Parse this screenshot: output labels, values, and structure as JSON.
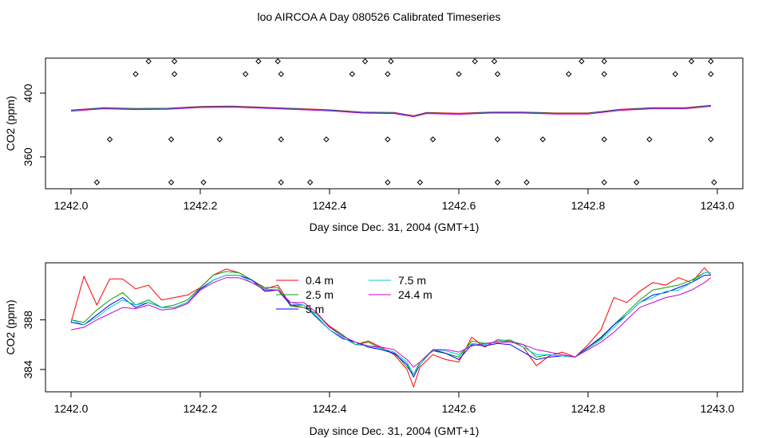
{
  "figure": {
    "title": "loo AIRCOA A  Day 080526  Calibrated Timeseries"
  },
  "chart_data": [
    {
      "type": "scatter+line",
      "xlabel": "Day since Dec. 31, 2004 (GMT+1)",
      "ylabel": "CO2 (ppm)",
      "xlim": [
        1242.0,
        1243.0
      ],
      "ylim": [
        340,
        422
      ],
      "xticks": [
        "1242.0",
        "1242.2",
        "1242.4",
        "1242.6",
        "1242.8",
        "1243.0"
      ],
      "yticks": [
        "360",
        "400"
      ],
      "colors": {
        "0.4 m": "#ff0000",
        "2.5 m": "#00a000",
        "5 m": "#0000ff",
        "7.5 m": "#00cccc",
        "24.4 m": "#cc00cc"
      },
      "line_x": [
        1242.0,
        1242.05,
        1242.1,
        1242.15,
        1242.2,
        1242.25,
        1242.3,
        1242.35,
        1242.4,
        1242.45,
        1242.5,
        1242.53,
        1242.55,
        1242.6,
        1242.65,
        1242.7,
        1242.75,
        1242.8,
        1242.85,
        1242.9,
        1242.95,
        1242.99
      ],
      "line_y": [
        389,
        390.5,
        390,
        390.2,
        391.3,
        391.5,
        390.8,
        390,
        389.2,
        387.8,
        387.5,
        385.5,
        387.5,
        387,
        387.8,
        387.8,
        387.2,
        387.2,
        389.5,
        390.5,
        390.5,
        392
      ],
      "points": [
        {
          "x": 1242.04,
          "y": 344
        },
        {
          "x": 1242.155,
          "y": 344
        },
        {
          "x": 1242.205,
          "y": 344
        },
        {
          "x": 1242.325,
          "y": 344
        },
        {
          "x": 1242.37,
          "y": 344
        },
        {
          "x": 1242.49,
          "y": 344
        },
        {
          "x": 1242.54,
          "y": 344
        },
        {
          "x": 1242.66,
          "y": 344
        },
        {
          "x": 1242.705,
          "y": 344
        },
        {
          "x": 1242.825,
          "y": 344
        },
        {
          "x": 1242.875,
          "y": 344
        },
        {
          "x": 1242.995,
          "y": 344
        },
        {
          "x": 1242.06,
          "y": 371
        },
        {
          "x": 1242.155,
          "y": 371
        },
        {
          "x": 1242.23,
          "y": 371
        },
        {
          "x": 1242.325,
          "y": 371
        },
        {
          "x": 1242.395,
          "y": 371
        },
        {
          "x": 1242.49,
          "y": 371
        },
        {
          "x": 1242.56,
          "y": 371
        },
        {
          "x": 1242.66,
          "y": 371
        },
        {
          "x": 1242.73,
          "y": 371
        },
        {
          "x": 1242.825,
          "y": 371
        },
        {
          "x": 1242.895,
          "y": 371
        },
        {
          "x": 1242.99,
          "y": 371
        },
        {
          "x": 1242.1,
          "y": 412
        },
        {
          "x": 1242.16,
          "y": 412
        },
        {
          "x": 1242.27,
          "y": 412
        },
        {
          "x": 1242.325,
          "y": 412
        },
        {
          "x": 1242.435,
          "y": 412
        },
        {
          "x": 1242.49,
          "y": 412
        },
        {
          "x": 1242.6,
          "y": 412
        },
        {
          "x": 1242.66,
          "y": 412
        },
        {
          "x": 1242.77,
          "y": 412
        },
        {
          "x": 1242.825,
          "y": 412
        },
        {
          "x": 1242.935,
          "y": 412
        },
        {
          "x": 1242.99,
          "y": 412
        },
        {
          "x": 1242.12,
          "y": 420
        },
        {
          "x": 1242.16,
          "y": 420
        },
        {
          "x": 1242.29,
          "y": 420
        },
        {
          "x": 1242.32,
          "y": 420
        },
        {
          "x": 1242.455,
          "y": 420
        },
        {
          "x": 1242.495,
          "y": 420
        },
        {
          "x": 1242.625,
          "y": 420
        },
        {
          "x": 1242.655,
          "y": 420
        },
        {
          "x": 1242.79,
          "y": 420
        },
        {
          "x": 1242.825,
          "y": 420
        },
        {
          "x": 1242.96,
          "y": 420
        },
        {
          "x": 1242.99,
          "y": 420
        }
      ]
    },
    {
      "type": "line",
      "xlabel": "Day since Dec. 31, 2004 (GMT+1)",
      "ylabel": "CO2 (ppm)",
      "xlim": [
        1242.0,
        1243.0
      ],
      "ylim": [
        382.2,
        392.6
      ],
      "xticks": [
        "1242.0",
        "1242.2",
        "1242.4",
        "1242.6",
        "1242.8",
        "1243.0"
      ],
      "yticks": [
        "384",
        "388"
      ],
      "x": [
        1242.0,
        1242.02,
        1242.04,
        1242.06,
        1242.08,
        1242.1,
        1242.12,
        1242.14,
        1242.16,
        1242.18,
        1242.2,
        1242.22,
        1242.24,
        1242.26,
        1242.28,
        1242.3,
        1242.32,
        1242.34,
        1242.36,
        1242.38,
        1242.4,
        1242.42,
        1242.44,
        1242.46,
        1242.48,
        1242.5,
        1242.52,
        1242.53,
        1242.54,
        1242.56,
        1242.58,
        1242.6,
        1242.62,
        1242.64,
        1242.66,
        1242.68,
        1242.7,
        1242.72,
        1242.74,
        1242.76,
        1242.78,
        1242.8,
        1242.82,
        1242.84,
        1242.86,
        1242.88,
        1242.9,
        1242.92,
        1242.94,
        1242.96,
        1242.98,
        1242.99
      ],
      "series": [
        {
          "name": "0.4 m",
          "color": "#ff0000",
          "values": [
            387.8,
            391.5,
            389.2,
            391.3,
            391.3,
            390.5,
            390.8,
            389.6,
            389.8,
            390.0,
            390.6,
            391.6,
            392.1,
            391.8,
            391.2,
            390.5,
            390.8,
            389.2,
            389.0,
            388.5,
            387.5,
            386.8,
            386.0,
            386.3,
            385.8,
            385.2,
            384.0,
            382.6,
            384.2,
            385.2,
            384.8,
            384.6,
            386.6,
            385.8,
            386.4,
            386.3,
            385.8,
            384.3,
            385.1,
            385.4,
            385.0,
            386.0,
            387.2,
            389.8,
            389.4,
            390.3,
            391.0,
            390.8,
            391.4,
            391.0,
            392.2,
            391.6
          ]
        },
        {
          "name": "2.5 m",
          "color": "#00a000",
          "values": [
            388.0,
            387.8,
            388.8,
            389.6,
            390.2,
            389.2,
            389.6,
            389.0,
            389.2,
            389.6,
            390.6,
            391.6,
            391.9,
            391.8,
            391.2,
            390.6,
            390.6,
            389.1,
            389.0,
            388.5,
            387.4,
            386.8,
            386.0,
            386.2,
            385.7,
            385.4,
            384.2,
            383.6,
            384.6,
            385.5,
            385.3,
            385.0,
            386.3,
            386.1,
            386.2,
            386.3,
            386.0,
            385.0,
            385.2,
            385.1,
            385.0,
            385.8,
            386.5,
            387.6,
            388.6,
            389.6,
            390.4,
            390.6,
            390.8,
            391.2,
            391.8,
            391.8
          ]
        },
        {
          "name": "5 m",
          "color": "#0000ff",
          "values": [
            387.8,
            387.6,
            388.4,
            389.2,
            389.8,
            389.0,
            389.4,
            389.0,
            389.0,
            389.4,
            390.5,
            391.2,
            391.6,
            391.6,
            391.2,
            390.3,
            390.4,
            389.2,
            389.2,
            388.2,
            387.2,
            386.5,
            386.2,
            385.8,
            385.6,
            385.3,
            384.4,
            383.4,
            384.4,
            385.6,
            385.3,
            384.8,
            386.0,
            385.9,
            386.1,
            386.0,
            385.4,
            384.8,
            385.0,
            385.1,
            385.0,
            385.8,
            386.6,
            387.6,
            388.4,
            389.4,
            390.0,
            390.2,
            390.6,
            391.0,
            391.6,
            391.6
          ]
        },
        {
          "name": "7.5 m",
          "color": "#00cccc",
          "values": [
            388.0,
            387.6,
            388.2,
            389.0,
            389.6,
            389.2,
            389.4,
            389.0,
            389.0,
            389.4,
            390.4,
            391.2,
            391.6,
            391.6,
            391.0,
            390.5,
            390.4,
            389.4,
            389.2,
            388.3,
            387.2,
            386.6,
            386.0,
            385.9,
            385.7,
            385.4,
            384.6,
            383.6,
            384.4,
            385.6,
            385.5,
            385.2,
            386.1,
            386.0,
            386.3,
            386.4,
            385.8,
            385.2,
            385.2,
            385.1,
            385.0,
            385.7,
            386.4,
            387.4,
            388.4,
            389.4,
            389.8,
            390.3,
            390.4,
            391.0,
            391.8,
            391.8
          ]
        },
        {
          "name": "24.4 m",
          "color": "#cc00cc",
          "values": [
            387.2,
            387.4,
            388.0,
            388.5,
            389.0,
            388.9,
            389.2,
            388.8,
            388.9,
            389.3,
            390.4,
            391.0,
            391.4,
            391.4,
            391.0,
            390.4,
            390.4,
            389.4,
            389.4,
            388.6,
            387.4,
            386.7,
            386.2,
            385.9,
            385.8,
            385.6,
            384.8,
            384.2,
            384.6,
            385.6,
            385.6,
            385.4,
            385.9,
            386.1,
            386.2,
            386.2,
            386.0,
            385.6,
            385.4,
            385.2,
            385.0,
            385.6,
            386.2,
            387.0,
            388.0,
            389.0,
            389.4,
            389.8,
            390.0,
            390.4,
            391.0,
            391.4
          ]
        }
      ],
      "legend": {
        "placement": "top-center",
        "entries": [
          "0.4 m",
          "2.5 m",
          "5 m",
          "7.5 m",
          "24.4 m"
        ]
      }
    }
  ]
}
